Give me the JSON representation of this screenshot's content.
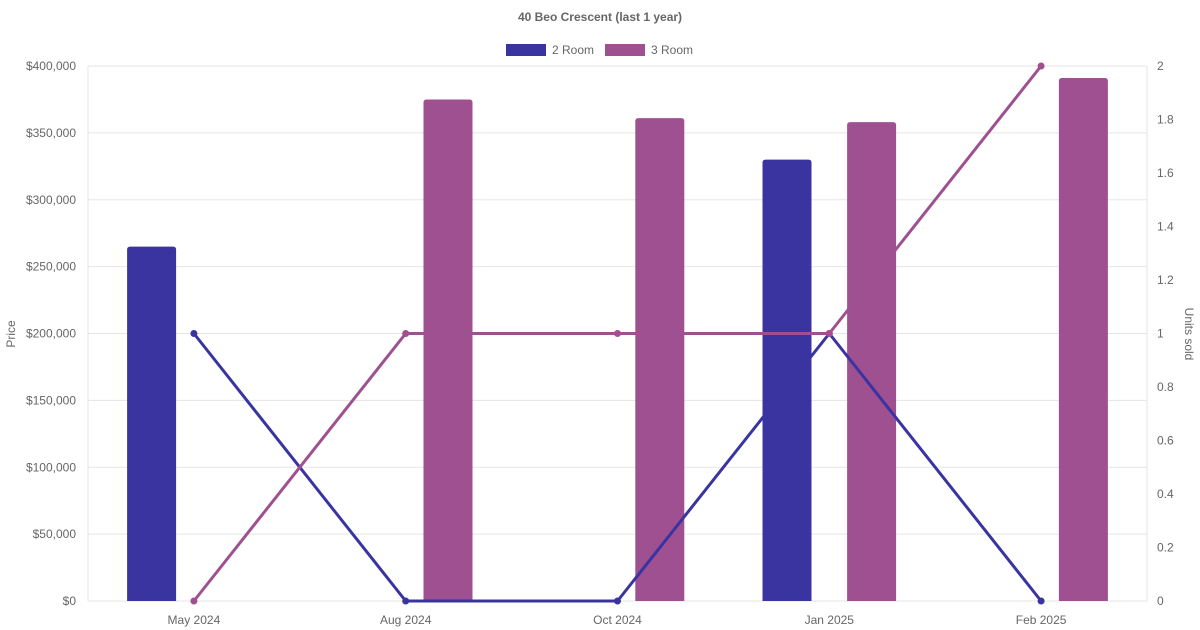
{
  "chart_data": {
    "type": "bar",
    "title": "40 Beo Crescent (last 1 year)",
    "categories": [
      "May 2024",
      "Aug 2024",
      "Oct 2024",
      "Jan 2025",
      "Feb 2025"
    ],
    "y_left": {
      "label": "Price",
      "ticks": [
        "$0",
        "$50,000",
        "$100,000",
        "$150,000",
        "$200,000",
        "$250,000",
        "$300,000",
        "$350,000",
        "$400,000"
      ],
      "ylim": [
        0,
        400000
      ]
    },
    "y_right": {
      "label": "Units sold",
      "ticks": [
        "0",
        "0.2",
        "0.4",
        "0.6",
        "0.8",
        "1",
        "1.2",
        "1.4",
        "1.6",
        "1.8",
        "2"
      ],
      "ylim": [
        0,
        2
      ]
    },
    "legend": {
      "placement": "top-center",
      "items": [
        {
          "label": "2 Room",
          "color": "#3a34a0"
        },
        {
          "label": "3 Room",
          "color": "#9f5091"
        }
      ]
    },
    "series": [
      {
        "name": "2 Room",
        "type": "bar",
        "axis": "left",
        "color": "#3a34a0",
        "values": [
          265000,
          null,
          null,
          330000,
          null
        ]
      },
      {
        "name": "3 Room",
        "type": "bar",
        "axis": "left",
        "color": "#9f5091",
        "values": [
          null,
          375000,
          361000,
          358000,
          391000
        ]
      },
      {
        "name": "2 Room",
        "type": "line",
        "axis": "right",
        "color": "#3a34a0",
        "values": [
          1,
          0,
          0,
          1,
          0
        ]
      },
      {
        "name": "3 Room",
        "type": "line",
        "axis": "right",
        "color": "#9f5091",
        "values": [
          0,
          1,
          1,
          1,
          2
        ]
      }
    ],
    "grid": true
  }
}
